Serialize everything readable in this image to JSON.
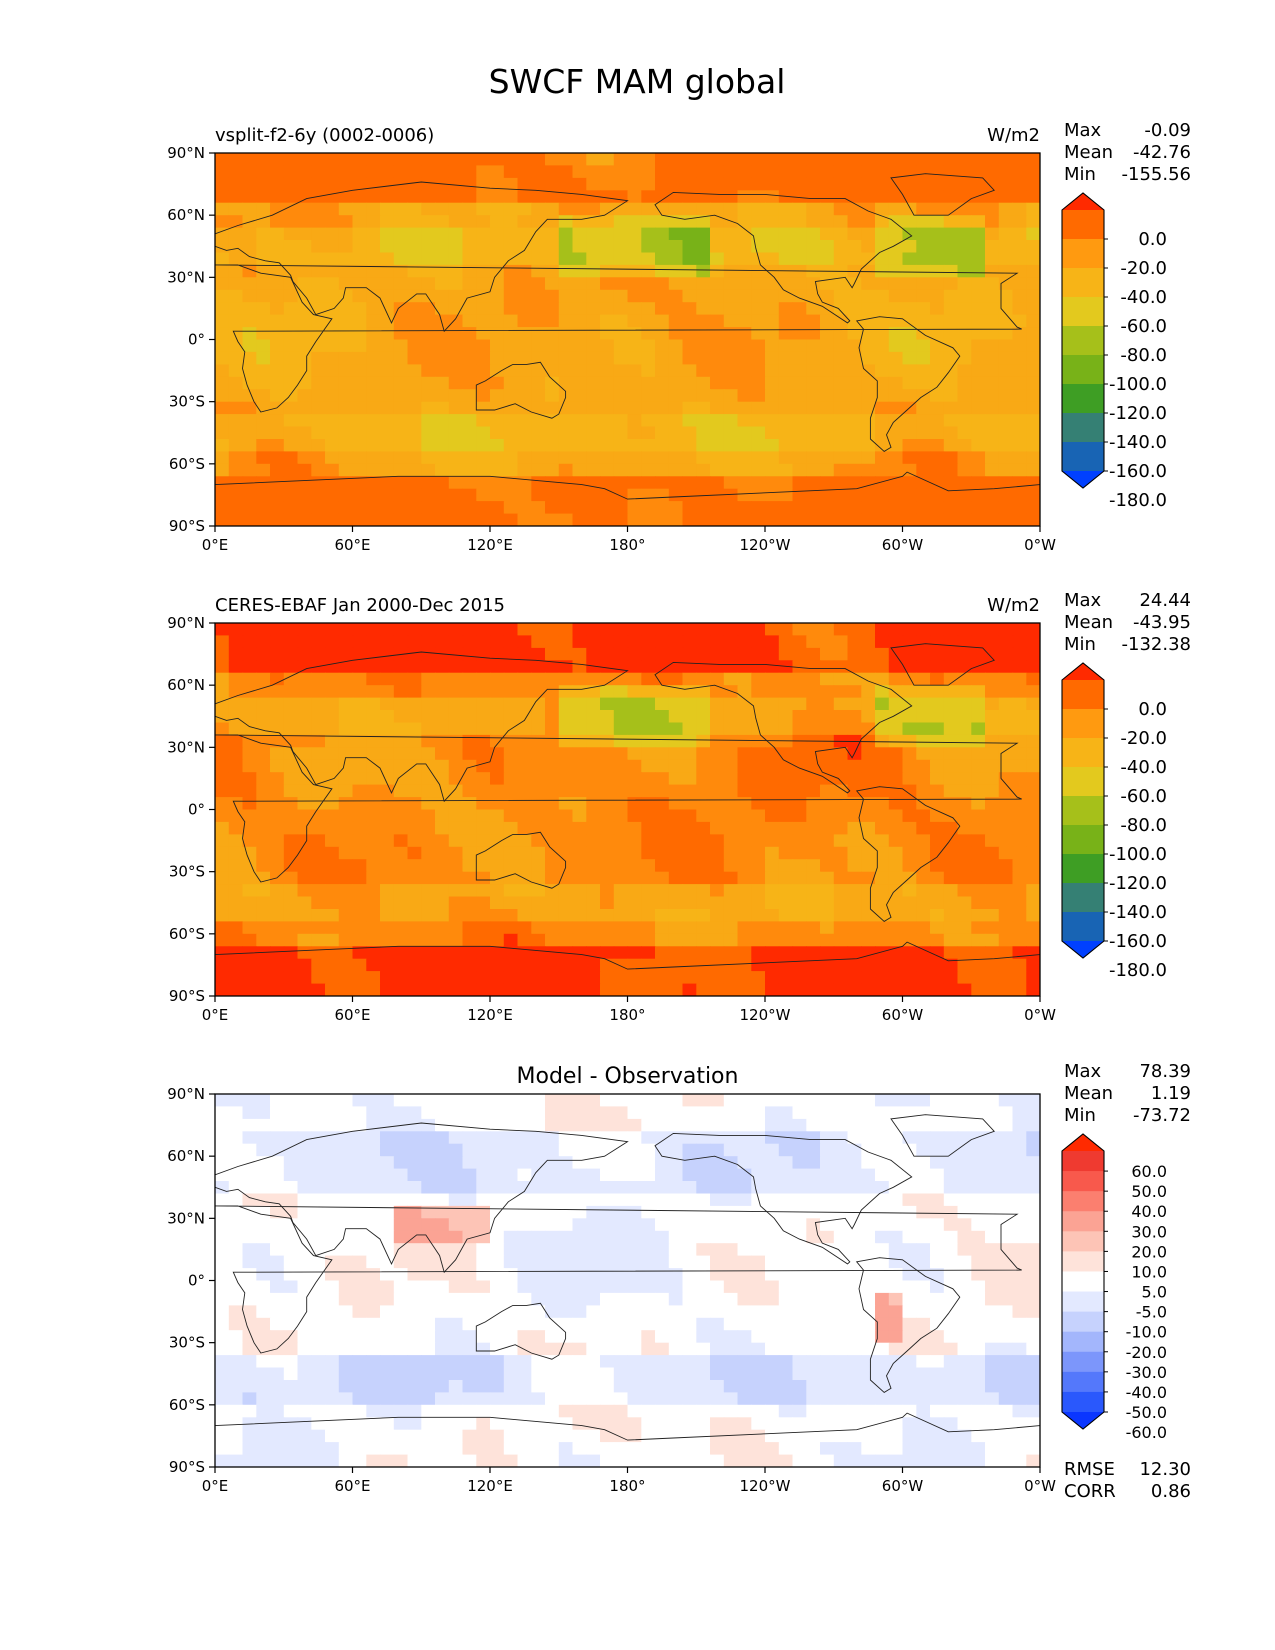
{
  "title": "SWCF MAM global",
  "lat_ticks": [
    "90°N",
    "60°N",
    "30°N",
    "0°",
    "30°S",
    "60°S",
    "90°S"
  ],
  "lon_ticks": [
    "0°E",
    "60°E",
    "120°E",
    "180°",
    "120°W",
    "60°W",
    "0°W"
  ],
  "panels": [
    {
      "id": "model",
      "left_title": "vsplit-f2-6y (0002-0006)",
      "center_title": "",
      "units": "W/m2",
      "stats": {
        "labels": [
          "Max",
          "Mean",
          "Min"
        ],
        "values": [
          "-0.09",
          "-42.76",
          "-155.56"
        ]
      },
      "colorbar": {
        "labels": [
          "0.0",
          "-20.0",
          "-40.0",
          "-60.0",
          "-80.0",
          "-100.0",
          "-120.0",
          "-140.0",
          "-160.0",
          "-180.0"
        ],
        "colors": [
          "#ff2a00",
          "#ff6a00",
          "#ff9a10",
          "#f7b417",
          "#e3c91e",
          "#a6c01a",
          "#78b218",
          "#3e9e24",
          "#358074",
          "#1864b4",
          "#0040ff"
        ]
      },
      "palette": [
        "#ff6a00",
        "#ff8a0c",
        "#f9a915",
        "#f7b417",
        "#e3c91e",
        "#a6c01a",
        "#78b218",
        "#3e9e24"
      ],
      "data_range": [
        -155.56,
        -0.09
      ]
    },
    {
      "id": "obs",
      "left_title": "CERES-EBAF Jan 2000-Dec 2015",
      "center_title": "",
      "units": "W/m2",
      "stats": {
        "labels": [
          "Max",
          "Mean",
          "Min"
        ],
        "values": [
          "24.44",
          "-43.95",
          "-132.38"
        ]
      },
      "colorbar": {
        "labels": [
          "0.0",
          "-20.0",
          "-40.0",
          "-60.0",
          "-80.0",
          "-100.0",
          "-120.0",
          "-140.0",
          "-160.0",
          "-180.0"
        ],
        "colors": [
          "#ff2a00",
          "#ff6a00",
          "#ff9a10",
          "#f7b417",
          "#e3c91e",
          "#a6c01a",
          "#78b218",
          "#3e9e24",
          "#358074",
          "#1864b4",
          "#0040ff"
        ]
      },
      "palette": [
        "#ff2a00",
        "#ff6a00",
        "#ff8a0c",
        "#f9a915",
        "#f7b417",
        "#e3c91e",
        "#a6c01a",
        "#78b218"
      ],
      "data_range": [
        -132.38,
        24.44
      ]
    },
    {
      "id": "diff",
      "left_title": "",
      "center_title": "Model - Observation",
      "units": "",
      "stats": {
        "labels": [
          "Max",
          "Mean",
          "Min"
        ],
        "values": [
          "78.39",
          "1.19",
          "-73.72"
        ]
      },
      "colorbar": {
        "labels": [
          "60.0",
          "50.0",
          "40.0",
          "30.0",
          "20.0",
          "10.0",
          "5.0",
          "-5.0",
          "-10.0",
          "-20.0",
          "-30.0",
          "-40.0",
          "-50.0",
          "-60.0"
        ],
        "colors": [
          "#ff2a00",
          "#ef3a30",
          "#f8594c",
          "#fb7f6f",
          "#fba394",
          "#fdc4b6",
          "#fee3da",
          "#ffffff",
          "#e3e9ff",
          "#c6d2fd",
          "#a3b6fc",
          "#7c96fb",
          "#5478fb",
          "#2a58fc",
          "#0a36ff"
        ]
      },
      "palette": [
        "#fba394",
        "#fdc4b6",
        "#fee3da",
        "#ffffff",
        "#e3e9ff",
        "#c6d2fd",
        "#a3b6fc",
        "#7c96fb"
      ],
      "data_range": [
        -73.72,
        78.39
      ],
      "metrics": {
        "labels": [
          "RMSE",
          "CORR"
        ],
        "values": [
          "12.30",
          "0.86"
        ]
      }
    }
  ]
}
